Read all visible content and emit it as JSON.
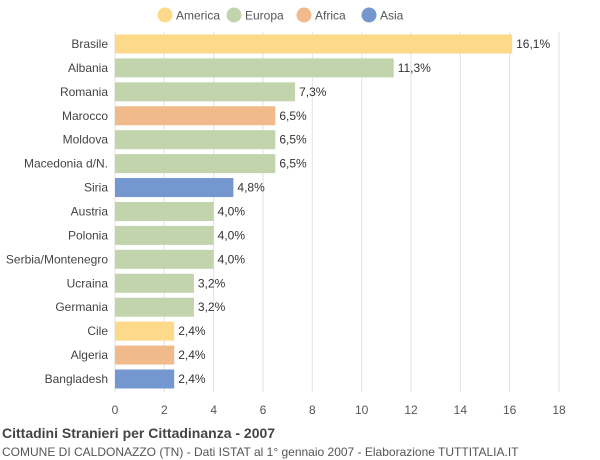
{
  "chart_data": {
    "type": "bar",
    "orientation": "horizontal",
    "title": "Cittadini Stranieri per Cittadinanza - 2007",
    "subtitle": "COMUNE DI CALDONAZZO (TN) - Dati ISTAT al 1° gennaio 2007 - Elaborazione TUTTITALIA.IT",
    "legend_position": "top",
    "legend": [
      {
        "name": "America",
        "color": "#fdd98a"
      },
      {
        "name": "Europa",
        "color": "#c2d4ac"
      },
      {
        "name": "Africa",
        "color": "#f0ba8a"
      },
      {
        "name": "Asia",
        "color": "#7597cf"
      }
    ],
    "categories": [
      "Brasile",
      "Albania",
      "Romania",
      "Marocco",
      "Moldova",
      "Macedonia d/N.",
      "Siria",
      "Austria",
      "Polonia",
      "Serbia/Montenegro",
      "Ucraina",
      "Germania",
      "Cile",
      "Algeria",
      "Bangladesh"
    ],
    "values": [
      16.1,
      11.3,
      7.3,
      6.5,
      6.5,
      6.5,
      4.8,
      4.0,
      4.0,
      4.0,
      3.2,
      3.2,
      2.4,
      2.4,
      2.4
    ],
    "value_labels": [
      "16,1%",
      "11,3%",
      "7,3%",
      "6,5%",
      "6,5%",
      "6,5%",
      "4,8%",
      "4,0%",
      "4,0%",
      "4,0%",
      "3,2%",
      "3,2%",
      "2,4%",
      "2,4%",
      "2,4%"
    ],
    "groups": [
      "America",
      "Europa",
      "Europa",
      "Africa",
      "Europa",
      "Europa",
      "Asia",
      "Europa",
      "Europa",
      "Europa",
      "Europa",
      "Europa",
      "America",
      "Africa",
      "Asia"
    ],
    "xlim": [
      0,
      18
    ],
    "xticks": [
      0,
      2,
      4,
      6,
      8,
      10,
      12,
      14,
      16,
      18
    ],
    "grid": true
  }
}
